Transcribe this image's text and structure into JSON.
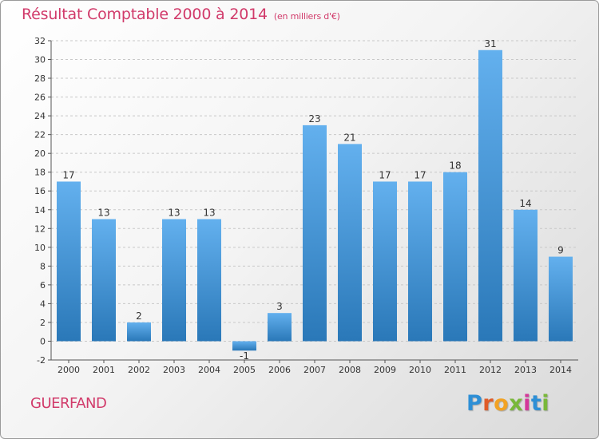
{
  "title": "Résultat Comptable 2000 à 2014",
  "subtitle": "(en milliers d'€)",
  "commune": "GUERFAND",
  "logo_letters": [
    "P",
    "r",
    "o",
    "x",
    "i",
    "t",
    "i"
  ],
  "colors": {
    "bar_top": "#63b0ee",
    "bar_bottom": "#2a78b8",
    "title": "#d13a6a",
    "grid": "#c8c8c8"
  },
  "chart_data": {
    "type": "bar",
    "title": "Résultat Comptable 2000 à 2014",
    "subtitle": "(en milliers d'€)",
    "categories": [
      "2000",
      "2001",
      "2002",
      "2003",
      "2004",
      "2005",
      "2006",
      "2007",
      "2008",
      "2009",
      "2010",
      "2011",
      "2012",
      "2013",
      "2014"
    ],
    "values": [
      17,
      13,
      2,
      13,
      13,
      -1,
      3,
      23,
      21,
      17,
      17,
      18,
      31,
      14,
      9
    ],
    "data_labels": [
      "17",
      "13",
      "2",
      "13",
      "13",
      "-1",
      "3",
      "23",
      "21",
      "17",
      "17",
      "18",
      "31",
      "14",
      "9"
    ],
    "ylim": [
      -2,
      32
    ],
    "yticks": [
      -2,
      0,
      2,
      4,
      6,
      8,
      10,
      12,
      14,
      16,
      18,
      20,
      22,
      24,
      26,
      28,
      30,
      32
    ],
    "xlabel": "",
    "ylabel": "",
    "grid": "horizontal dashed"
  }
}
